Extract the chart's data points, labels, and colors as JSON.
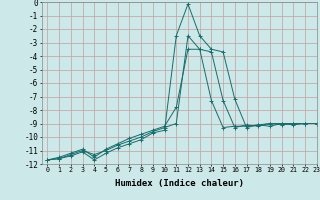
{
  "xlabel": "Humidex (Indice chaleur)",
  "bg_color": "#cce8e8",
  "grid_color": "#c0a0a0",
  "line_color": "#1a6b6b",
  "x_data": [
    0,
    1,
    2,
    3,
    4,
    5,
    6,
    7,
    8,
    9,
    10,
    11,
    12,
    13,
    14,
    15,
    16,
    17,
    18,
    19,
    20,
    21,
    22,
    23
  ],
  "series1": [
    -11.7,
    -11.6,
    -11.4,
    -11.1,
    -11.7,
    -11.2,
    -10.8,
    -10.5,
    -10.2,
    -9.7,
    -9.5,
    -2.5,
    -0.15,
    -2.5,
    -3.5,
    -3.7,
    -7.2,
    -9.3,
    -9.1,
    -9.2,
    -9.0,
    -9.1,
    -9.0,
    -9.0
  ],
  "series2": [
    -11.7,
    -11.6,
    -11.3,
    -11.0,
    -11.3,
    -11.0,
    -10.6,
    -10.3,
    -10.0,
    -9.6,
    -9.3,
    -9.0,
    -2.5,
    -3.5,
    -3.7,
    -7.3,
    -9.3,
    -9.1,
    -9.2,
    -9.0,
    -9.1,
    -9.0,
    -9.0,
    -9.0
  ],
  "series3": [
    -11.7,
    -11.5,
    -11.2,
    -10.9,
    -11.5,
    -10.9,
    -10.5,
    -10.1,
    -9.8,
    -9.5,
    -9.2,
    -7.8,
    -3.5,
    -3.5,
    -7.3,
    -9.3,
    -9.2,
    -9.2,
    -9.1,
    -9.0,
    -9.0,
    -9.0,
    -9.0,
    -9.0
  ],
  "ylim": [
    -12,
    0
  ],
  "xlim": [
    -0.5,
    23
  ],
  "yticks": [
    0,
    -1,
    -2,
    -3,
    -4,
    -5,
    -6,
    -7,
    -8,
    -9,
    -10,
    -11,
    -12
  ],
  "xticks": [
    0,
    1,
    2,
    3,
    4,
    5,
    6,
    7,
    8,
    9,
    10,
    11,
    12,
    13,
    14,
    15,
    16,
    17,
    18,
    19,
    20,
    21,
    22,
    23
  ],
  "xlabel_fontsize": 6.5,
  "ytick_fontsize": 5.5,
  "xtick_fontsize": 4.8
}
